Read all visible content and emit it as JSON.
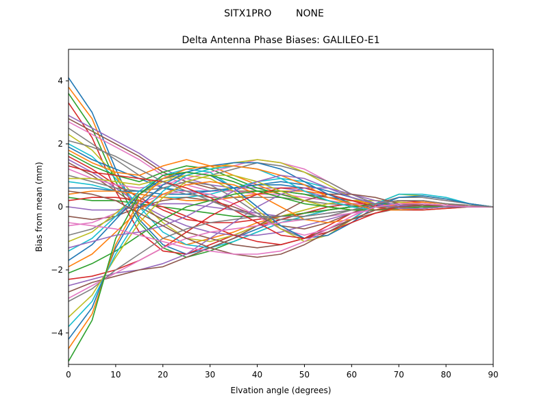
{
  "figure": {
    "suptitle": "SITX1PRO        NONE"
  },
  "chart_data": {
    "type": "line",
    "title": "Delta Antenna Phase Biases: GALILEO-E1",
    "xlabel": "Elvation angle (degrees)",
    "ylabel": "Bias from mean (mm)",
    "xlim": [
      0,
      90
    ],
    "ylim": [
      -5,
      5
    ],
    "xticks": [
      "0",
      "10",
      "20",
      "30",
      "40",
      "50",
      "60",
      "70",
      "80",
      "90"
    ],
    "yticks": [
      "-4",
      "-2",
      "0",
      "2",
      "4"
    ],
    "grid": false,
    "legend": "none",
    "x": [
      0,
      5,
      10,
      15,
      20,
      25,
      30,
      35,
      40,
      45,
      50,
      55,
      60,
      65,
      70,
      75,
      80,
      85,
      90
    ],
    "colors": [
      "#1f77b4",
      "#ff7f0e",
      "#2ca02c",
      "#d62728",
      "#9467bd",
      "#8c564b",
      "#e377c2",
      "#7f7f7f",
      "#bcbd22",
      "#17becf"
    ],
    "series": [
      {
        "values": [
          4.1,
          3.0,
          1.2,
          -0.4,
          -1.2,
          -1.5,
          -1.3,
          -1.0,
          -0.7,
          -0.4,
          -0.2,
          0.0,
          0.1,
          0.1,
          0.1,
          0.05,
          0.0,
          0.0,
          0.0
        ]
      },
      {
        "values": [
          3.8,
          2.8,
          1.0,
          -0.3,
          -1.0,
          -1.2,
          -1.0,
          -0.8,
          -0.5,
          -0.3,
          -0.1,
          0.1,
          0.2,
          0.2,
          0.15,
          0.1,
          0.05,
          0.0,
          0.0
        ]
      },
      {
        "values": [
          3.6,
          2.5,
          0.8,
          -0.5,
          -1.3,
          -1.6,
          -1.4,
          -1.1,
          -0.8,
          -0.5,
          -0.3,
          -0.1,
          0.0,
          0.05,
          0.05,
          0.0,
          0.0,
          0.0,
          0.0
        ]
      },
      {
        "values": [
          3.3,
          2.2,
          0.5,
          -0.8,
          -1.4,
          -1.5,
          -1.2,
          -0.9,
          -0.6,
          -0.4,
          -0.2,
          0.0,
          0.1,
          0.1,
          0.05,
          0.0,
          0.0,
          0.0,
          0.0
        ]
      },
      {
        "values": [
          2.9,
          2.5,
          2.1,
          1.7,
          1.2,
          0.9,
          0.7,
          0.6,
          0.6,
          0.6,
          0.5,
          0.3,
          0.2,
          0.1,
          0.05,
          0.0,
          0.0,
          0.0,
          0.0
        ]
      },
      {
        "values": [
          2.8,
          2.4,
          2.0,
          1.6,
          1.1,
          0.8,
          0.6,
          0.5,
          0.5,
          0.5,
          0.4,
          0.3,
          0.2,
          0.1,
          0.05,
          0.0,
          0.0,
          0.0,
          0.0
        ]
      },
      {
        "values": [
          2.7,
          2.3,
          1.9,
          1.5,
          1.0,
          0.7,
          0.5,
          0.5,
          0.4,
          0.4,
          0.3,
          0.2,
          0.1,
          0.05,
          0.0,
          0.0,
          0.0,
          0.0,
          0.0
        ]
      },
      {
        "values": [
          2.5,
          2.0,
          1.5,
          1.0,
          0.6,
          0.4,
          0.3,
          0.3,
          0.3,
          0.3,
          0.2,
          0.1,
          0.05,
          0.0,
          0.0,
          0.0,
          0.0,
          0.0,
          0.0
        ]
      },
      {
        "values": [
          2.3,
          1.8,
          1.0,
          0.2,
          -0.5,
          -1.0,
          -1.1,
          -0.9,
          -0.6,
          -0.3,
          -0.1,
          0.1,
          0.2,
          0.2,
          0.15,
          0.1,
          0.05,
          0.0,
          0.0
        ]
      },
      {
        "values": [
          2.0,
          1.6,
          0.9,
          0.0,
          -0.8,
          -1.2,
          -1.3,
          -1.1,
          -0.8,
          -0.5,
          -0.3,
          -0.1,
          0.0,
          0.05,
          0.05,
          0.0,
          0.0,
          0.0,
          0.0
        ]
      },
      {
        "values": [
          1.9,
          1.5,
          1.2,
          0.9,
          0.6,
          0.5,
          0.5,
          0.6,
          0.7,
          0.7,
          0.6,
          0.4,
          0.2,
          0.1,
          0.05,
          0.0,
          0.0,
          0.0,
          0.0
        ]
      },
      {
        "values": [
          1.8,
          1.4,
          1.1,
          1.0,
          1.3,
          1.5,
          1.3,
          1.0,
          0.7,
          0.4,
          0.2,
          0.0,
          -0.1,
          -0.1,
          -0.05,
          0.0,
          0.0,
          0.0,
          0.0
        ]
      },
      {
        "values": [
          1.7,
          1.3,
          1.0,
          0.8,
          1.1,
          1.3,
          1.2,
          0.9,
          0.6,
          0.4,
          0.2,
          0.0,
          -0.1,
          -0.1,
          -0.05,
          0.0,
          0.0,
          0.0,
          0.0
        ]
      },
      {
        "values": [
          1.6,
          1.2,
          0.7,
          0.3,
          -0.1,
          -0.4,
          -0.5,
          -0.5,
          -0.4,
          -0.3,
          -0.2,
          -0.1,
          0.0,
          0.05,
          0.05,
          0.0,
          0.0,
          0.0,
          0.0
        ]
      },
      {
        "values": [
          1.5,
          1.1,
          0.6,
          0.1,
          -0.3,
          -0.6,
          -0.8,
          -0.9,
          -0.9,
          -0.8,
          -0.6,
          -0.4,
          -0.2,
          0.0,
          0.1,
          0.1,
          0.05,
          0.0,
          0.0
        ]
      },
      {
        "values": [
          1.4,
          1.0,
          0.5,
          0.0,
          -0.4,
          -0.8,
          -1.0,
          -1.2,
          -1.3,
          -1.2,
          -1.0,
          -0.7,
          -0.4,
          -0.2,
          -0.05,
          0.0,
          0.0,
          0.0,
          0.0
        ]
      },
      {
        "values": [
          1.2,
          0.9,
          0.7,
          0.6,
          0.7,
          0.9,
          1.1,
          1.3,
          1.5,
          1.4,
          1.2,
          0.8,
          0.4,
          0.1,
          -0.05,
          -0.05,
          0.0,
          0.0,
          0.0
        ]
      },
      {
        "values": [
          1.0,
          0.8,
          0.6,
          0.5,
          0.6,
          0.8,
          1.0,
          1.2,
          1.4,
          1.3,
          1.1,
          0.8,
          0.4,
          0.1,
          0.0,
          0.0,
          0.0,
          0.0,
          0.0
        ]
      },
      {
        "values": [
          0.9,
          0.9,
          0.8,
          0.7,
          0.9,
          1.0,
          1.2,
          1.4,
          1.5,
          1.4,
          1.1,
          0.7,
          0.3,
          0.0,
          -0.1,
          -0.1,
          -0.05,
          0.0,
          0.0
        ]
      },
      {
        "values": [
          0.8,
          0.7,
          0.5,
          0.4,
          0.3,
          0.3,
          0.4,
          0.6,
          0.8,
          0.9,
          0.8,
          0.6,
          0.3,
          0.1,
          0.0,
          0.0,
          0.0,
          0.0,
          0.0
        ]
      },
      {
        "values": [
          0.6,
          0.6,
          0.5,
          0.5,
          0.4,
          0.4,
          0.5,
          0.6,
          0.7,
          0.8,
          0.7,
          0.5,
          0.3,
          0.1,
          0.0,
          0.0,
          0.0,
          0.0,
          0.0
        ]
      },
      {
        "values": [
          0.4,
          0.5,
          0.5,
          0.4,
          0.3,
          0.2,
          0.2,
          0.3,
          0.4,
          0.5,
          0.5,
          0.4,
          0.2,
          0.1,
          0.0,
          0.0,
          0.0,
          0.0,
          0.0
        ]
      },
      {
        "values": [
          0.3,
          0.2,
          0.2,
          0.1,
          0.0,
          -0.1,
          -0.2,
          -0.3,
          -0.3,
          -0.3,
          -0.2,
          -0.1,
          0.0,
          0.1,
          0.1,
          0.05,
          0.0,
          0.0,
          0.0
        ]
      },
      {
        "values": [
          0.2,
          0.3,
          0.3,
          0.2,
          0.0,
          -0.3,
          -0.6,
          -0.9,
          -1.1,
          -1.2,
          -1.0,
          -0.6,
          -0.2,
          0.1,
          0.2,
          0.15,
          0.1,
          0.0,
          0.0
        ]
      },
      {
        "values": [
          0.0,
          -0.1,
          -0.1,
          0.0,
          0.1,
          0.1,
          0.0,
          -0.1,
          -0.2,
          -0.3,
          -0.3,
          -0.2,
          -0.1,
          0.0,
          0.05,
          0.05,
          0.0,
          0.0,
          0.0
        ]
      },
      {
        "values": [
          -0.3,
          -0.4,
          -0.3,
          0.0,
          0.2,
          0.3,
          0.2,
          0.0,
          -0.3,
          -0.6,
          -0.7,
          -0.5,
          -0.2,
          0.1,
          0.2,
          0.2,
          0.1,
          0.0,
          0.0
        ]
      },
      {
        "values": [
          -0.6,
          -0.5,
          -0.2,
          0.1,
          0.4,
          0.5,
          0.4,
          0.1,
          -0.3,
          -0.7,
          -0.9,
          -0.7,
          -0.3,
          0.1,
          0.3,
          0.3,
          0.2,
          0.1,
          0.0
        ]
      },
      {
        "values": [
          -0.9,
          -0.7,
          -0.3,
          0.2,
          0.6,
          0.8,
          0.7,
          0.3,
          -0.2,
          -0.7,
          -1.0,
          -0.8,
          -0.4,
          0.1,
          0.3,
          0.3,
          0.2,
          0.1,
          0.0
        ]
      },
      {
        "values": [
          -1.1,
          -0.8,
          -0.2,
          0.4,
          0.8,
          1.0,
          0.9,
          0.5,
          -0.1,
          -0.7,
          -1.1,
          -0.9,
          -0.4,
          0.1,
          0.4,
          0.35,
          0.25,
          0.1,
          0.0
        ]
      },
      {
        "values": [
          -1.4,
          -1.0,
          -0.3,
          0.5,
          1.0,
          1.2,
          1.1,
          0.6,
          0.0,
          -0.6,
          -1.0,
          -0.8,
          -0.4,
          0.1,
          0.4,
          0.4,
          0.3,
          0.1,
          0.0
        ]
      },
      {
        "values": [
          -1.7,
          -1.2,
          -0.4,
          0.4,
          0.9,
          1.1,
          1.0,
          0.6,
          0.0,
          -0.6,
          -1.0,
          -0.9,
          -0.5,
          0.0,
          0.3,
          0.35,
          0.25,
          0.1,
          0.0
        ]
      },
      {
        "values": [
          -1.9,
          -1.5,
          -0.8,
          -0.1,
          0.4,
          0.7,
          0.8,
          0.7,
          0.4,
          0.0,
          -0.4,
          -0.5,
          -0.4,
          -0.1,
          0.1,
          0.15,
          0.1,
          0.05,
          0.0
        ]
      },
      {
        "values": [
          -2.1,
          -1.8,
          -1.4,
          -0.9,
          -0.4,
          0.0,
          0.2,
          0.4,
          0.5,
          0.5,
          0.4,
          0.2,
          0.0,
          -0.1,
          -0.1,
          -0.05,
          0.0,
          0.0,
          0.0
        ]
      },
      {
        "values": [
          -2.3,
          -2.2,
          -2.0,
          -1.7,
          -1.3,
          -0.8,
          -0.3,
          0.1,
          0.4,
          0.6,
          0.6,
          0.4,
          0.2,
          0.0,
          -0.1,
          -0.1,
          -0.05,
          0.0,
          0.0
        ]
      },
      {
        "values": [
          -2.5,
          -2.3,
          -2.1,
          -2.0,
          -1.8,
          -1.5,
          -1.0,
          -0.5,
          0.0,
          0.4,
          0.6,
          0.6,
          0.4,
          0.2,
          0.05,
          0.0,
          0.0,
          0.0,
          0.0
        ]
      },
      {
        "values": [
          -2.7,
          -2.4,
          -2.2,
          -2.0,
          -1.9,
          -1.6,
          -1.3,
          -1.0,
          -0.6,
          -0.2,
          0.2,
          0.4,
          0.4,
          0.3,
          0.1,
          0.05,
          0.0,
          0.0,
          0.0
        ]
      },
      {
        "values": [
          -2.9,
          -2.5,
          -2.1,
          -1.7,
          -1.3,
          -1.0,
          -0.8,
          -0.7,
          -0.6,
          -0.5,
          -0.4,
          -0.3,
          -0.2,
          -0.1,
          0.0,
          0.0,
          0.0,
          0.0,
          0.0
        ]
      },
      {
        "values": [
          -3.0,
          -2.6,
          -2.0,
          -1.5,
          -1.0,
          -0.7,
          -0.5,
          -0.4,
          -0.3,
          -0.3,
          -0.3,
          -0.2,
          -0.1,
          0.0,
          0.0,
          0.0,
          0.0,
          0.0,
          0.0
        ]
      },
      {
        "values": [
          -3.5,
          -2.8,
          -1.6,
          -0.5,
          0.3,
          0.8,
          1.0,
          1.0,
          0.8,
          0.5,
          0.2,
          0.0,
          -0.1,
          -0.1,
          -0.05,
          0.0,
          0.0,
          0.0,
          0.0
        ]
      },
      {
        "values": [
          -3.8,
          -3.0,
          -1.5,
          -0.3,
          0.5,
          1.0,
          1.2,
          1.3,
          1.2,
          0.9,
          0.5,
          0.2,
          0.0,
          -0.1,
          -0.1,
          -0.05,
          0.0,
          0.0,
          0.0
        ]
      },
      {
        "values": [
          -4.2,
          -3.2,
          -1.3,
          0.0,
          0.7,
          1.1,
          1.3,
          1.4,
          1.4,
          1.2,
          0.8,
          0.4,
          0.1,
          -0.1,
          -0.1,
          -0.05,
          0.0,
          0.0,
          0.0
        ]
      },
      {
        "values": [
          -4.5,
          -3.4,
          -1.2,
          0.2,
          0.9,
          1.2,
          1.3,
          1.3,
          1.2,
          1.0,
          0.7,
          0.3,
          0.1,
          -0.1,
          -0.1,
          -0.05,
          0.0,
          0.0,
          0.0
        ]
      },
      {
        "values": [
          -4.9,
          -3.6,
          -1.0,
          0.4,
          1.0,
          1.1,
          1.0,
          0.8,
          0.5,
          0.3,
          0.1,
          0.0,
          -0.1,
          -0.1,
          -0.05,
          0.0,
          0.0,
          0.0,
          0.0
        ]
      },
      {
        "values": [
          1.3,
          1.1,
          1.0,
          0.9,
          0.8,
          0.6,
          0.3,
          -0.1,
          -0.5,
          -0.9,
          -1.0,
          -0.8,
          -0.5,
          -0.2,
          0.0,
          0.05,
          0.05,
          0.0,
          0.0
        ]
      },
      {
        "values": [
          -1.3,
          -1.1,
          -0.9,
          -0.8,
          -0.6,
          -0.3,
          0.1,
          0.5,
          0.8,
          1.0,
          0.9,
          0.6,
          0.3,
          0.1,
          -0.05,
          -0.05,
          0.0,
          0.0,
          0.0
        ]
      },
      {
        "values": [
          0.5,
          0.4,
          0.2,
          -0.2,
          -0.6,
          -1.0,
          -1.3,
          -1.5,
          -1.6,
          -1.5,
          -1.2,
          -0.8,
          -0.4,
          -0.1,
          0.0,
          0.05,
          0.05,
          0.0,
          0.0
        ]
      },
      {
        "values": [
          -0.5,
          -0.6,
          -0.7,
          -0.9,
          -1.1,
          -1.3,
          -1.4,
          -1.5,
          -1.5,
          -1.4,
          -1.1,
          -0.7,
          -0.3,
          0.0,
          0.1,
          0.1,
          0.05,
          0.0,
          0.0
        ]
      },
      {
        "values": [
          2.1,
          1.9,
          1.6,
          1.2,
          0.8,
          0.5,
          0.2,
          -0.1,
          -0.3,
          -0.4,
          -0.4,
          -0.3,
          -0.1,
          0.1,
          0.2,
          0.2,
          0.1,
          0.05,
          0.0
        ]
      }
    ]
  }
}
